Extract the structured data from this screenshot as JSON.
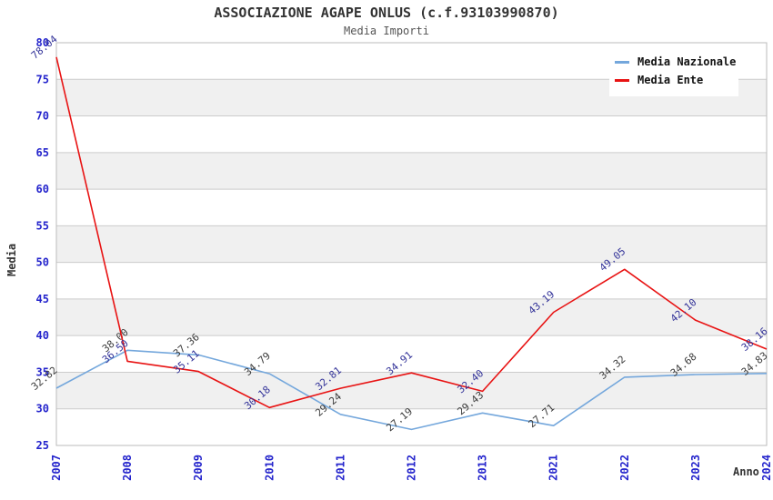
{
  "chart_data": {
    "type": "line",
    "title": "ASSOCIAZIONE AGAPE ONLUS (c.f.93103990870)",
    "subtitle": "Media Importi",
    "xlabel": "Anno",
    "ylabel": "Media",
    "categories": [
      "2007",
      "2008",
      "2009",
      "2010",
      "2011",
      "2012",
      "2013",
      "2021",
      "2022",
      "2023",
      "2024"
    ],
    "series": [
      {
        "name": "Media Nazionale",
        "color": "#74A7DC",
        "label_color": "#3C3C3C",
        "values": [
          32.82,
          38.0,
          37.36,
          34.79,
          29.24,
          27.19,
          29.43,
          27.71,
          34.32,
          34.68,
          34.83
        ]
      },
      {
        "name": "Media Ente",
        "color": "#E81313",
        "label_color": "#333399",
        "values": [
          78.04,
          36.5,
          35.11,
          30.18,
          32.81,
          34.91,
          32.4,
          43.19,
          49.05,
          42.1,
          38.16
        ]
      }
    ],
    "ylim": [
      25,
      80
    ],
    "ytick_step": 5,
    "grid": true,
    "legend_position": "top-right",
    "band_colors": [
      "#FFFFFF",
      "#F0F0F0"
    ],
    "tick_label_color": "#2424CC",
    "gridline_color": "#CCCCCC",
    "axis_border_color": "#BBBBBB"
  }
}
